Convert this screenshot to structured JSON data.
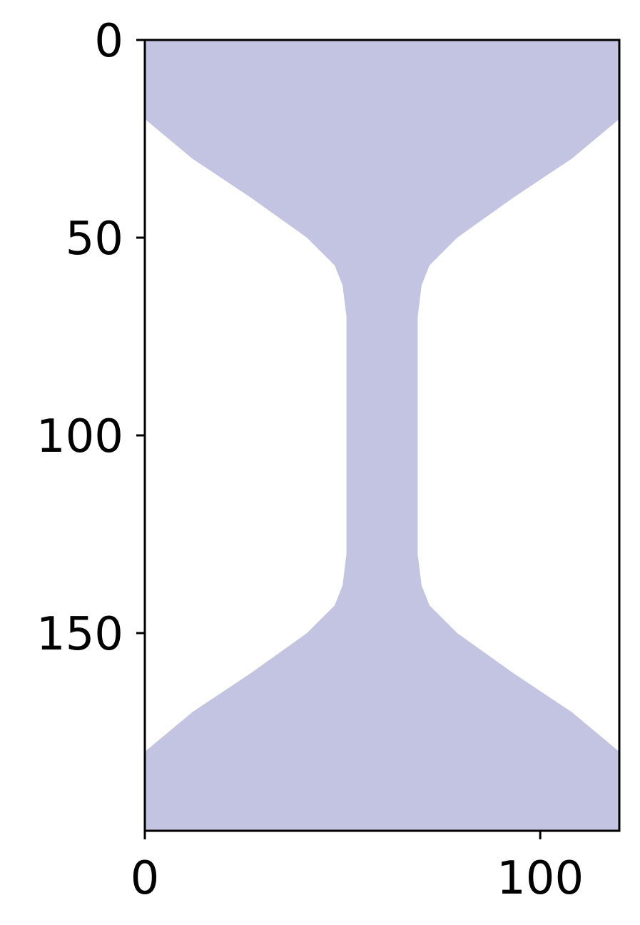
{
  "chart_data": {
    "type": "heatmap",
    "title": "",
    "xlabel": "",
    "ylabel": "",
    "xlim": [
      0,
      120
    ],
    "ylim": [
      200,
      0
    ],
    "grid": false,
    "x_ticks": [
      {
        "value": 0,
        "label": "0"
      },
      {
        "value": 100,
        "label": "100"
      }
    ],
    "y_ticks": [
      {
        "value": 0,
        "label": "0"
      },
      {
        "value": 50,
        "label": "50"
      },
      {
        "value": 100,
        "label": "100"
      },
      {
        "value": 150,
        "label": "150"
      }
    ],
    "fill_color": "#c3c3e2",
    "background_color": "#ffffff",
    "region_boundary": [
      {
        "y": 0,
        "x_left": 0,
        "x_right": 120
      },
      {
        "y": 20,
        "x_left": 0,
        "x_right": 120
      },
      {
        "y": 30,
        "x_left": 12,
        "x_right": 108
      },
      {
        "y": 40,
        "x_left": 27,
        "x_right": 93
      },
      {
        "y": 50,
        "x_left": 41,
        "x_right": 79
      },
      {
        "y": 57,
        "x_left": 48,
        "x_right": 72
      },
      {
        "y": 62,
        "x_left": 50,
        "x_right": 70
      },
      {
        "y": 70,
        "x_left": 51,
        "x_right": 69
      },
      {
        "y": 130,
        "x_left": 51,
        "x_right": 69
      },
      {
        "y": 138,
        "x_left": 50,
        "x_right": 70
      },
      {
        "y": 143,
        "x_left": 48,
        "x_right": 72
      },
      {
        "y": 150,
        "x_left": 41,
        "x_right": 79
      },
      {
        "y": 160,
        "x_left": 27,
        "x_right": 93
      },
      {
        "y": 170,
        "x_left": 12,
        "x_right": 108
      },
      {
        "y": 180,
        "x_left": 0,
        "x_right": 120
      },
      {
        "y": 200,
        "x_left": 0,
        "x_right": 120
      }
    ]
  }
}
